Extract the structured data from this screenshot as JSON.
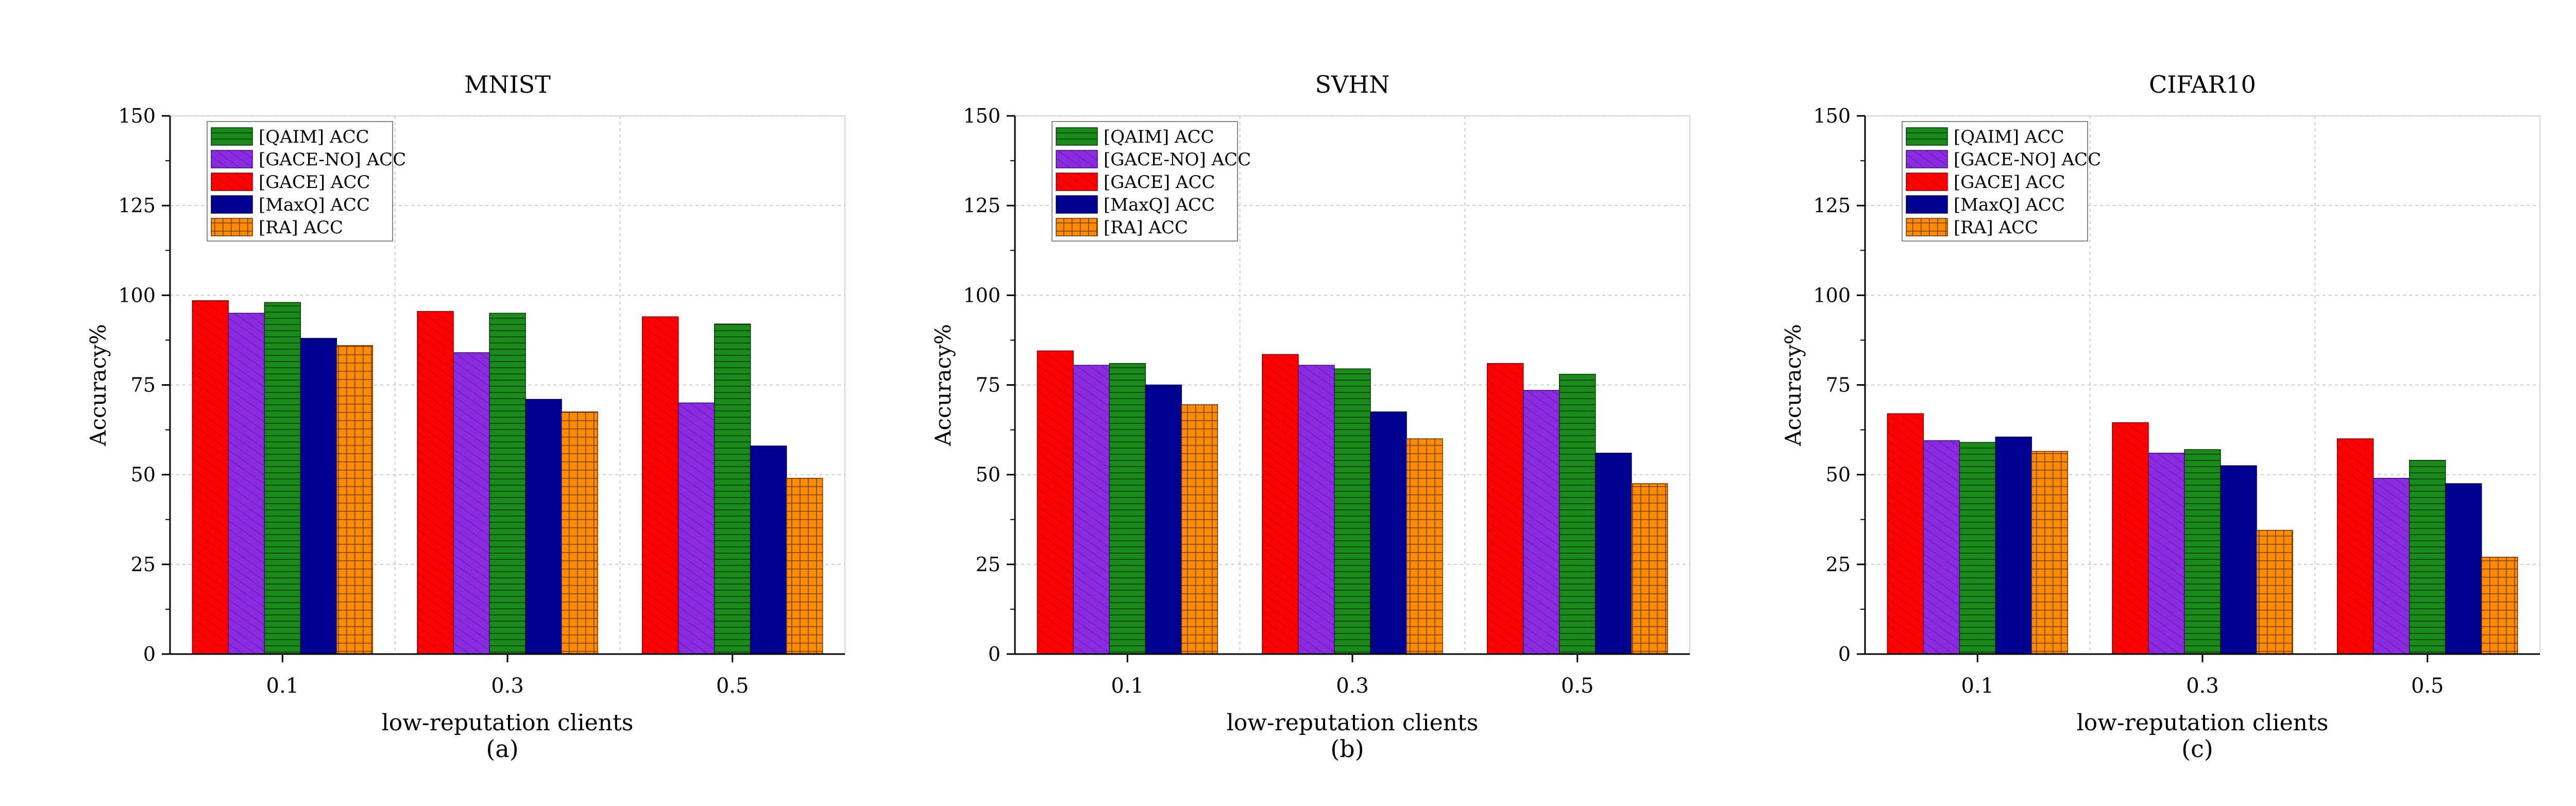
{
  "colors": {
    "GACE": "#ff0000",
    "GACE-NO": "#8a2be2",
    "QAIM": "#1a8a1a",
    "MaxQ": "#000090",
    "RA": "#ff8c00",
    "grid": "#cccccc",
    "axis": "#000000"
  },
  "chart_data": [
    {
      "type": "bar",
      "title": "MNIST",
      "caption": "(a)",
      "xlabel": "low-reputation clients",
      "ylabel": "Accuracy%",
      "categories": [
        "0.1",
        "0.3",
        "0.5"
      ],
      "ylim": [
        0,
        150
      ],
      "yticks": [
        "0",
        "25",
        "50",
        "75",
        "100",
        "125",
        "150"
      ],
      "legend_position": "top-left",
      "grid": true,
      "series": [
        {
          "name": "[GACE] ACC",
          "key": "GACE",
          "values": [
            98.5,
            95.5,
            94
          ]
        },
        {
          "name": "[GACE-NO] ACC",
          "key": "GACE-NO",
          "values": [
            95,
            84,
            70
          ]
        },
        {
          "name": "[QAIM] ACC",
          "key": "QAIM",
          "values": [
            98,
            95,
            92
          ]
        },
        {
          "name": "[MaxQ] ACC",
          "key": "MaxQ",
          "values": [
            88,
            71,
            58
          ]
        },
        {
          "name": "[RA] ACC",
          "key": "RA",
          "values": [
            86,
            67.5,
            49
          ]
        }
      ],
      "legend_order": [
        "QAIM",
        "GACE-NO",
        "GACE",
        "MaxQ",
        "RA"
      ]
    },
    {
      "type": "bar",
      "title": "SVHN",
      "caption": "(b)",
      "xlabel": "low-reputation clients",
      "ylabel": "Accuracy%",
      "categories": [
        "0.1",
        "0.3",
        "0.5"
      ],
      "ylim": [
        0,
        150
      ],
      "yticks": [
        "0",
        "25",
        "50",
        "75",
        "100",
        "125",
        "150"
      ],
      "legend_position": "top-left",
      "grid": true,
      "series": [
        {
          "name": "[GACE] ACC",
          "key": "GACE",
          "values": [
            84.5,
            83.5,
            81
          ]
        },
        {
          "name": "[GACE-NO] ACC",
          "key": "GACE-NO",
          "values": [
            80.5,
            80.5,
            73.5
          ]
        },
        {
          "name": "[QAIM] ACC",
          "key": "QAIM",
          "values": [
            81,
            79.5,
            78
          ]
        },
        {
          "name": "[MaxQ] ACC",
          "key": "MaxQ",
          "values": [
            75,
            67.5,
            56
          ]
        },
        {
          "name": "[RA] ACC",
          "key": "RA",
          "values": [
            69.5,
            60,
            47.5
          ]
        }
      ],
      "legend_order": [
        "QAIM",
        "GACE-NO",
        "GACE",
        "MaxQ",
        "RA"
      ]
    },
    {
      "type": "bar",
      "title": "CIFAR10",
      "caption": "(c)",
      "xlabel": "low-reputation clients",
      "ylabel": "Accuracy%",
      "categories": [
        "0.1",
        "0.3",
        "0.5"
      ],
      "ylim": [
        0,
        150
      ],
      "yticks": [
        "0",
        "25",
        "50",
        "75",
        "100",
        "125",
        "150"
      ],
      "legend_position": "top-left",
      "grid": true,
      "series": [
        {
          "name": "[GACE] ACC",
          "key": "GACE",
          "values": [
            67,
            64.5,
            60
          ]
        },
        {
          "name": "[GACE-NO] ACC",
          "key": "GACE-NO",
          "values": [
            59.5,
            56,
            49
          ]
        },
        {
          "name": "[QAIM] ACC",
          "key": "QAIM",
          "values": [
            59,
            57,
            54
          ]
        },
        {
          "name": "[MaxQ] ACC",
          "key": "MaxQ",
          "values": [
            60.5,
            52.5,
            47.5
          ]
        },
        {
          "name": "[RA] ACC",
          "key": "RA",
          "values": [
            56.5,
            34.5,
            27
          ]
        }
      ],
      "legend_order": [
        "QAIM",
        "GACE-NO",
        "GACE",
        "MaxQ",
        "RA"
      ]
    }
  ]
}
